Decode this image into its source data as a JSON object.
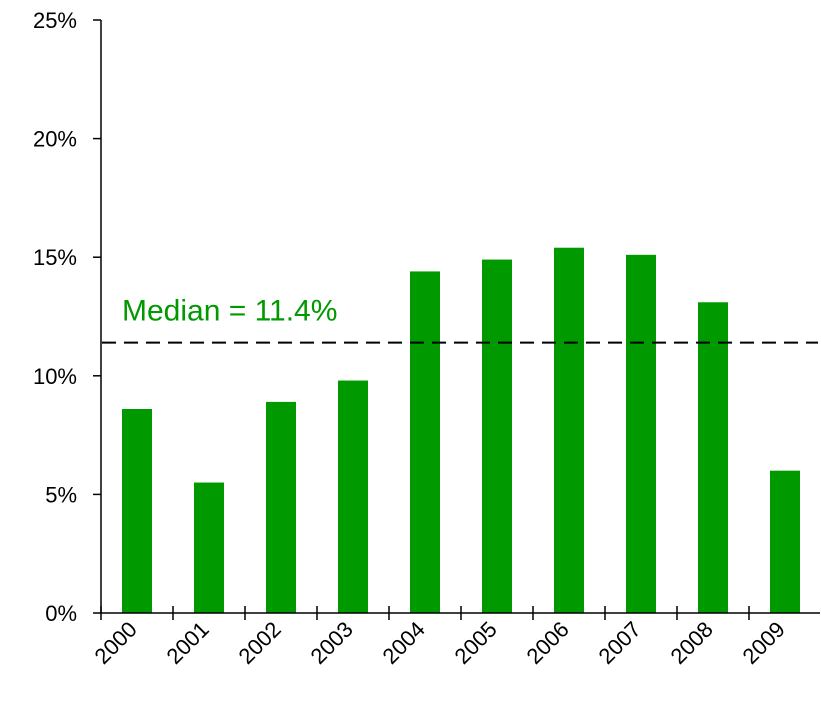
{
  "chart_data": {
    "type": "bar",
    "title": "",
    "xlabel": "",
    "ylabel": "",
    "categories": [
      "2000",
      "2001",
      "2002",
      "2003",
      "2004",
      "2005",
      "2006",
      "2007",
      "2008",
      "2009"
    ],
    "values": [
      8.6,
      5.5,
      8.9,
      9.8,
      14.4,
      14.9,
      15.4,
      15.1,
      13.1,
      6.0
    ],
    "ylim": [
      0,
      25
    ],
    "yticks": [
      0,
      5,
      10,
      15,
      20,
      25
    ],
    "ytick_labels": [
      "0%",
      "5%",
      "10%",
      "15%",
      "20%",
      "25%"
    ],
    "grid": false,
    "legend": "none",
    "bar_color": "#009900",
    "reference_line": {
      "value": 11.4,
      "label": "Median = 11.4%",
      "style": "dashed",
      "color": "#000000",
      "label_color": "#009900"
    }
  }
}
